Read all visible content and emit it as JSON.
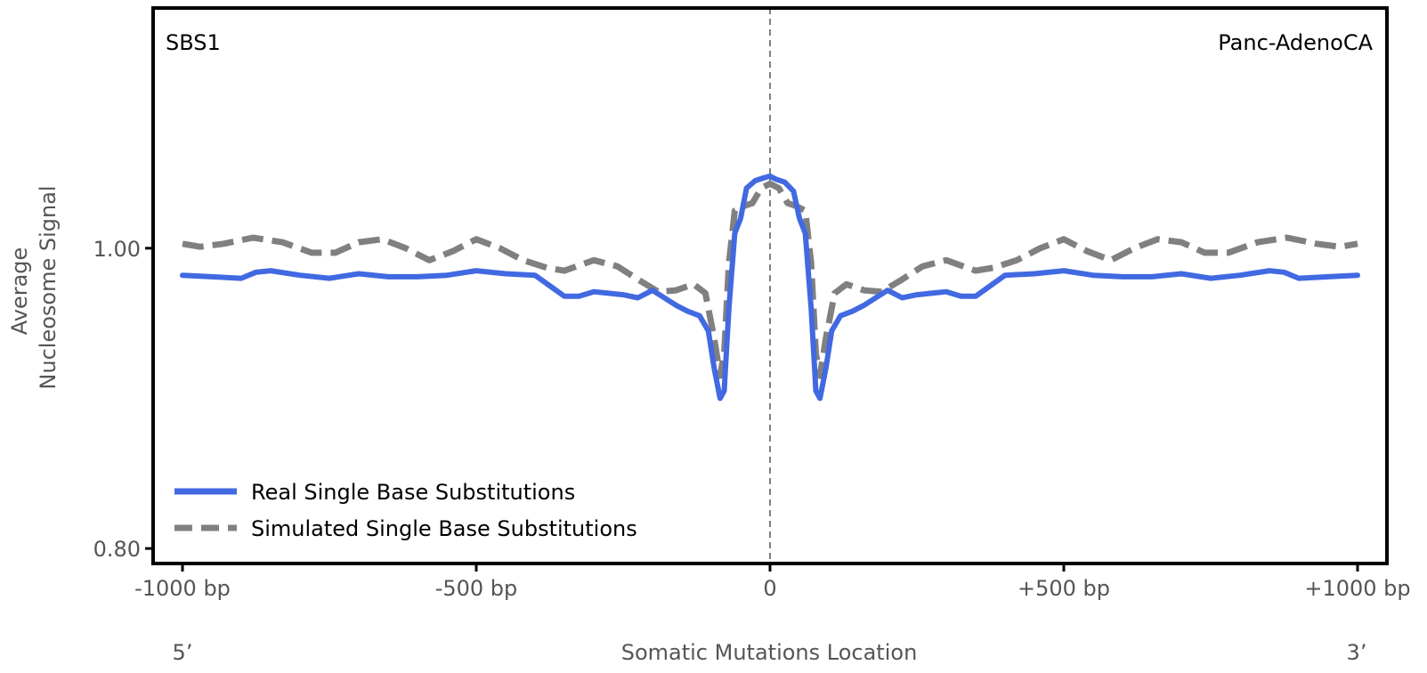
{
  "chart_data": {
    "type": "line",
    "signature_label": "SBS1",
    "cancer_type_label": "Panc-AdenoCA",
    "xlabel": "Somatic Mutations Location",
    "ylabel_line1": "Average",
    "ylabel_line2": "Nucleosome Signal",
    "x_ticks": [
      {
        "value": -1000,
        "label": "-1000 bp"
      },
      {
        "value": -500,
        "label": "-500 bp"
      },
      {
        "value": 0,
        "label": "0"
      },
      {
        "value": 500,
        "label": "+500 bp"
      },
      {
        "value": 1000,
        "label": "+1000 bp"
      }
    ],
    "y_ticks": [
      {
        "value": 0.8,
        "label": "0.80"
      },
      {
        "value": 1.0,
        "label": "1.00"
      }
    ],
    "end_labels": {
      "left": "5’",
      "right": "3’"
    },
    "xlim": [
      -1050,
      1050
    ],
    "ylim": [
      0.79,
      1.16
    ],
    "center_line": {
      "x": 0,
      "style": "dashed",
      "color": "#808080"
    },
    "legend_position": "lower-left",
    "series": [
      {
        "name": "Real Single Base Substitutions",
        "color": "#4169E1",
        "style": "solid",
        "points": [
          [
            -1000,
            0.982
          ],
          [
            -950,
            0.981
          ],
          [
            -900,
            0.98
          ],
          [
            -875,
            0.984
          ],
          [
            -850,
            0.985
          ],
          [
            -800,
            0.982
          ],
          [
            -750,
            0.98
          ],
          [
            -700,
            0.983
          ],
          [
            -650,
            0.981
          ],
          [
            -600,
            0.981
          ],
          [
            -550,
            0.982
          ],
          [
            -500,
            0.985
          ],
          [
            -450,
            0.983
          ],
          [
            -400,
            0.982
          ],
          [
            -375,
            0.975
          ],
          [
            -350,
            0.968
          ],
          [
            -325,
            0.968
          ],
          [
            -300,
            0.971
          ],
          [
            -275,
            0.97
          ],
          [
            -250,
            0.969
          ],
          [
            -225,
            0.967
          ],
          [
            -200,
            0.972
          ],
          [
            -180,
            0.967
          ],
          [
            -160,
            0.962
          ],
          [
            -140,
            0.958
          ],
          [
            -120,
            0.955
          ],
          [
            -105,
            0.945
          ],
          [
            -95,
            0.92
          ],
          [
            -85,
            0.9
          ],
          [
            -78,
            0.905
          ],
          [
            -70,
            0.96
          ],
          [
            -60,
            1.01
          ],
          [
            -50,
            1.02
          ],
          [
            -40,
            1.04
          ],
          [
            -25,
            1.045
          ],
          [
            -10,
            1.047
          ],
          [
            0,
            1.048
          ],
          [
            10,
            1.046
          ],
          [
            25,
            1.044
          ],
          [
            40,
            1.038
          ],
          [
            50,
            1.02
          ],
          [
            60,
            1.01
          ],
          [
            70,
            0.96
          ],
          [
            78,
            0.905
          ],
          [
            85,
            0.9
          ],
          [
            95,
            0.92
          ],
          [
            105,
            0.945
          ],
          [
            120,
            0.955
          ],
          [
            140,
            0.958
          ],
          [
            160,
            0.962
          ],
          [
            180,
            0.967
          ],
          [
            200,
            0.972
          ],
          [
            225,
            0.967
          ],
          [
            250,
            0.969
          ],
          [
            275,
            0.97
          ],
          [
            300,
            0.971
          ],
          [
            325,
            0.968
          ],
          [
            350,
            0.968
          ],
          [
            375,
            0.975
          ],
          [
            400,
            0.982
          ],
          [
            450,
            0.983
          ],
          [
            500,
            0.985
          ],
          [
            550,
            0.982
          ],
          [
            600,
            0.981
          ],
          [
            650,
            0.981
          ],
          [
            700,
            0.983
          ],
          [
            750,
            0.98
          ],
          [
            800,
            0.982
          ],
          [
            850,
            0.985
          ],
          [
            875,
            0.984
          ],
          [
            900,
            0.98
          ],
          [
            950,
            0.981
          ],
          [
            1000,
            0.982
          ]
        ]
      },
      {
        "name": "Simulated Single Base Substitutions",
        "color": "#808080",
        "style": "dashed",
        "points": [
          [
            -1000,
            1.003
          ],
          [
            -970,
            1.001
          ],
          [
            -930,
            1.003
          ],
          [
            -880,
            1.007
          ],
          [
            -830,
            1.004
          ],
          [
            -780,
            0.997
          ],
          [
            -740,
            0.997
          ],
          [
            -700,
            1.004
          ],
          [
            -660,
            1.006
          ],
          [
            -620,
            1.0
          ],
          [
            -580,
            0.992
          ],
          [
            -540,
            0.998
          ],
          [
            -500,
            1.006
          ],
          [
            -460,
            1.0
          ],
          [
            -420,
            0.992
          ],
          [
            -380,
            0.987
          ],
          [
            -350,
            0.985
          ],
          [
            -300,
            0.992
          ],
          [
            -260,
            0.988
          ],
          [
            -220,
            0.978
          ],
          [
            -190,
            0.971
          ],
          [
            -160,
            0.972
          ],
          [
            -130,
            0.976
          ],
          [
            -110,
            0.97
          ],
          [
            -95,
            0.94
          ],
          [
            -85,
            0.915
          ],
          [
            -78,
            0.93
          ],
          [
            -70,
            0.99
          ],
          [
            -60,
            1.025
          ],
          [
            -45,
            1.028
          ],
          [
            -30,
            1.03
          ],
          [
            -15,
            1.04
          ],
          [
            0,
            1.043
          ],
          [
            15,
            1.04
          ],
          [
            30,
            1.03
          ],
          [
            45,
            1.028
          ],
          [
            60,
            1.025
          ],
          [
            70,
            0.99
          ],
          [
            78,
            0.93
          ],
          [
            85,
            0.915
          ],
          [
            95,
            0.94
          ],
          [
            110,
            0.97
          ],
          [
            130,
            0.976
          ],
          [
            160,
            0.972
          ],
          [
            190,
            0.971
          ],
          [
            220,
            0.978
          ],
          [
            260,
            0.988
          ],
          [
            300,
            0.992
          ],
          [
            350,
            0.985
          ],
          [
            380,
            0.987
          ],
          [
            420,
            0.992
          ],
          [
            460,
            1.0
          ],
          [
            500,
            1.006
          ],
          [
            540,
            0.998
          ],
          [
            580,
            0.992
          ],
          [
            620,
            1.0
          ],
          [
            660,
            1.006
          ],
          [
            700,
            1.004
          ],
          [
            740,
            0.997
          ],
          [
            780,
            0.997
          ],
          [
            830,
            1.004
          ],
          [
            880,
            1.007
          ],
          [
            930,
            1.003
          ],
          [
            970,
            1.001
          ],
          [
            1000,
            1.003
          ]
        ]
      }
    ]
  }
}
